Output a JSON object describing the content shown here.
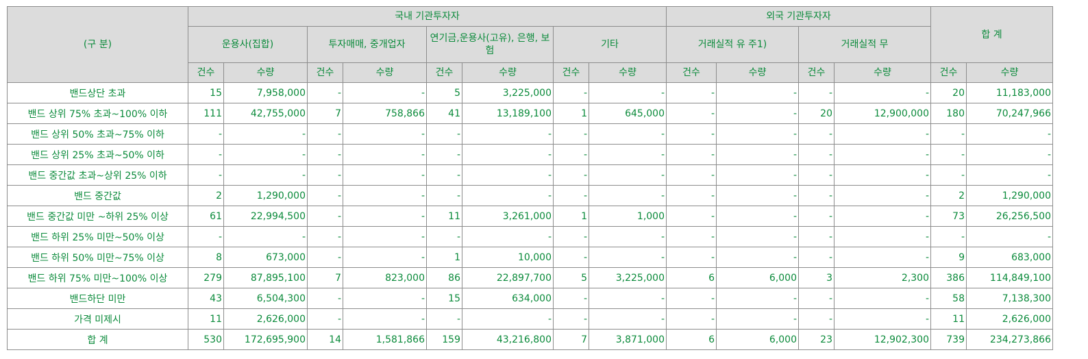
{
  "header": {
    "category": "(구 분)",
    "domestic": "국내 기관투자자",
    "foreign": "외국 기관투자자",
    "total": "합 계",
    "groups": [
      "운용사(집합)",
      "투자매매, 중개업자",
      "연기금,운용사(고유), 은행, 보험",
      "기타",
      "거래실적 유 주1)",
      "거래실적 무"
    ],
    "count": "건수",
    "qty": "수량"
  },
  "rows": [
    {
      "label": "밴드상단 초과",
      "cells": [
        "15",
        "7,958,000",
        "-",
        "-",
        "5",
        "3,225,000",
        "-",
        "-",
        "-",
        "-",
        "-",
        "-",
        "20",
        "11,183,000"
      ]
    },
    {
      "label": "밴드 상위 75% 초과~100% 이하",
      "cells": [
        "111",
        "42,755,000",
        "7",
        "758,866",
        "41",
        "13,189,100",
        "1",
        "645,000",
        "-",
        "-",
        "20",
        "12,900,000",
        "180",
        "70,247,966"
      ]
    },
    {
      "label": "밴드 상위 50% 초과~75% 이하",
      "cells": [
        "-",
        "-",
        "-",
        "-",
        "-",
        "-",
        "-",
        "-",
        "-",
        "-",
        "-",
        "-",
        "-",
        "-"
      ]
    },
    {
      "label": "밴드 상위 25% 초과~50% 이하",
      "cells": [
        "-",
        "-",
        "-",
        "-",
        "-",
        "-",
        "-",
        "-",
        "-",
        "-",
        "-",
        "-",
        "-",
        "-"
      ]
    },
    {
      "label": "밴드 중간값 초과~상위 25% 이하",
      "cells": [
        "-",
        "-",
        "-",
        "-",
        "-",
        "-",
        "-",
        "-",
        "-",
        "-",
        "-",
        "-",
        "-",
        "-"
      ]
    },
    {
      "label": "밴드 중간값",
      "cells": [
        "2",
        "1,290,000",
        "-",
        "-",
        "-",
        "-",
        "-",
        "-",
        "-",
        "-",
        "-",
        "-",
        "2",
        "1,290,000"
      ]
    },
    {
      "label": "밴드 중간값 미만 ~하위 25% 이상",
      "cells": [
        "61",
        "22,994,500",
        "-",
        "-",
        "11",
        "3,261,000",
        "1",
        "1,000",
        "-",
        "-",
        "-",
        "-",
        "73",
        "26,256,500"
      ]
    },
    {
      "label": "밴드 하위 25% 미만~50% 이상",
      "cells": [
        "-",
        "-",
        "-",
        "-",
        "-",
        "-",
        "-",
        "-",
        "-",
        "-",
        "-",
        "-",
        "-",
        "-"
      ]
    },
    {
      "label": "밴드 하위 50% 미만~75% 이상",
      "cells": [
        "8",
        "673,000",
        "-",
        "-",
        "1",
        "10,000",
        "-",
        "-",
        "-",
        "-",
        "-",
        "-",
        "9",
        "683,000"
      ]
    },
    {
      "label": "밴드 하위 75% 미만~100% 이상",
      "cells": [
        "279",
        "87,895,100",
        "7",
        "823,000",
        "86",
        "22,897,700",
        "5",
        "3,225,000",
        "6",
        "6,000",
        "3",
        "2,300",
        "386",
        "114,849,100"
      ]
    },
    {
      "label": "밴드하단 미만",
      "cells": [
        "43",
        "6,504,300",
        "-",
        "-",
        "15",
        "634,000",
        "-",
        "-",
        "-",
        "-",
        "-",
        "-",
        "58",
        "7,138,300"
      ]
    },
    {
      "label": "가격 미제시",
      "cells": [
        "11",
        "2,626,000",
        "-",
        "-",
        "-",
        "-",
        "-",
        "-",
        "-",
        "-",
        "-",
        "-",
        "11",
        "2,626,000"
      ]
    },
    {
      "label": "합 계",
      "cells": [
        "530",
        "172,695,900",
        "14",
        "1,581,866",
        "159",
        "43,216,800",
        "7",
        "3,871,000",
        "6",
        "6,000",
        "23",
        "12,902,300",
        "739",
        "234,273,866"
      ]
    }
  ]
}
